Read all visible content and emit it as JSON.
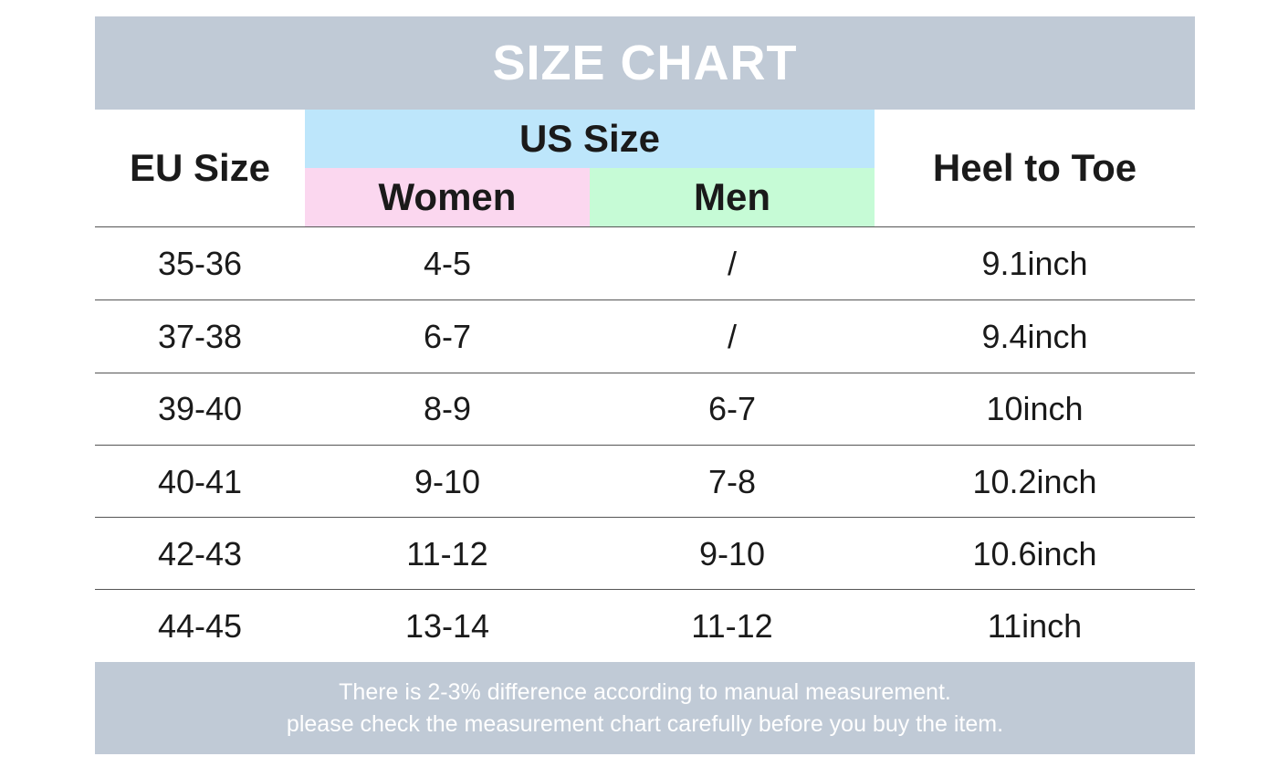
{
  "title": "SIZE CHART",
  "headers": {
    "eu": "EU Size",
    "us": "US Size",
    "women": "Women",
    "men": "Men",
    "heel": "Heel to Toe"
  },
  "rows": [
    {
      "eu": "35-36",
      "women": "4-5",
      "men": "/",
      "heel": "9.1inch"
    },
    {
      "eu": "37-38",
      "women": "6-7",
      "men": "/",
      "heel": "9.4inch"
    },
    {
      "eu": "39-40",
      "women": "8-9",
      "men": "6-7",
      "heel": "10inch"
    },
    {
      "eu": "40-41",
      "women": "9-10",
      "men": "7-8",
      "heel": "10.2inch"
    },
    {
      "eu": "42-43",
      "women": "11-12",
      "men": "9-10",
      "heel": "10.6inch"
    },
    {
      "eu": "44-45",
      "women": "13-14",
      "men": "11-12",
      "heel": "11inch"
    }
  ],
  "footer": {
    "line1": "There is 2-3% difference according to manual measurement.",
    "line2": "please check the measurement chart carefully before you buy the item."
  },
  "colors": {
    "banner": "#c0cad6",
    "us_header": "#bde6fb",
    "women_header": "#fbd7ef",
    "men_header": "#c6fbd6"
  }
}
